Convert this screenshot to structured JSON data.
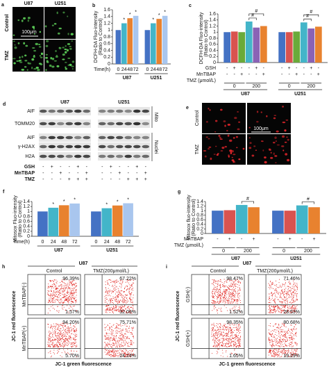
{
  "chart_data": [
    {
      "type": "bar",
      "letter": "b",
      "y_label": [
        "DCFH-DA Fluo-intensity",
        "(Ratio to Control)"
      ],
      "ylim": [
        0,
        1.6
      ],
      "yticks": [
        0,
        0.2,
        0.4,
        0.6,
        0.8,
        1,
        1.2,
        1.4,
        1.6
      ],
      "x_label": "Time(h)",
      "categories": [
        0,
        24,
        48,
        72
      ],
      "groups": [
        {
          "name": "U87",
          "values": [
            1,
            1.2,
            1.35,
            1.42
          ]
        },
        {
          "name": "U251",
          "values": [
            1,
            1.2,
            1.33,
            1.42
          ]
        }
      ],
      "colors": [
        "#4472c4",
        "#43b5c9",
        "#e8822f",
        "#a9c6ee"
      ],
      "markers": [
        null,
        "*",
        "*",
        "*"
      ]
    },
    {
      "type": "bar",
      "letter": "c",
      "y_label": [
        "DCFH-DA Fluo-intensity",
        "(Ratio to Control)"
      ],
      "ylim": [
        0,
        1.6
      ],
      "yticks": [
        0,
        0.2,
        0.4,
        0.6,
        0.8,
        1,
        1.2,
        1.4,
        1.6
      ],
      "conditions": [
        {
          "label": "GSH",
          "cells": [
            "-",
            "+",
            "-",
            "-",
            "+",
            "-"
          ]
        },
        {
          "label": "MnTBAP",
          "cells": [
            "-",
            "-",
            "+",
            "-",
            "-",
            "+"
          ]
        }
      ],
      "dose": {
        "label": "TMZ (μmol/L)",
        "values": [
          0,
          200
        ]
      },
      "groups": [
        {
          "name": "U87",
          "values": [
            1,
            1.02,
            1,
            1.35,
            1.15,
            1.2
          ]
        },
        {
          "name": "U251",
          "values": [
            1,
            1,
            1.02,
            1.32,
            1.12,
            1.18
          ]
        }
      ],
      "colors": [
        "#4472c4",
        "#d9534f",
        "#6aaa3a",
        "#43b5c9",
        "#8a62b5",
        "#e8822f"
      ],
      "brackets": [
        {
          "bars": [
            3,
            4
          ],
          "label": "#"
        },
        {
          "bars": [
            3,
            5
          ],
          "label": "#"
        }
      ]
    },
    {
      "type": "bar",
      "letter": "f",
      "y_label": [
        "Mitosox Fluo-intensity",
        "(Ratio to Control)"
      ],
      "ylim": [
        0,
        1.4
      ],
      "yticks": [
        0,
        0.2,
        0.4,
        0.6,
        0.8,
        1,
        1.2,
        1.4
      ],
      "x_label": "Time(h)",
      "categories": [
        0,
        24,
        48,
        72
      ],
      "groups": [
        {
          "name": "U87",
          "values": [
            1,
            1.15,
            1.25,
            1.32
          ]
        },
        {
          "name": "U251",
          "values": [
            1,
            1.13,
            1.24,
            1.33
          ]
        }
      ],
      "colors": [
        "#4472c4",
        "#43b5c9",
        "#e8822f",
        "#a9c6ee"
      ],
      "markers": [
        null,
        "*",
        "*",
        "*"
      ]
    },
    {
      "type": "bar",
      "letter": "g",
      "y_label": [
        "Mitosox fluo-intensity",
        "(Ratio to Control)"
      ],
      "ylim": [
        0,
        1.4
      ],
      "yticks": [
        0,
        0.2,
        0.4,
        0.6,
        0.8,
        1,
        1.2,
        1.4
      ],
      "conditions": [
        {
          "label": "MnTBAP",
          "cells": [
            "-",
            "+",
            "-",
            "+"
          ]
        }
      ],
      "dose": {
        "label": "TMZ (μmol/L)",
        "values": [
          0,
          200
        ]
      },
      "groups": [
        {
          "name": "U87",
          "values": [
            1,
            1.02,
            1.25,
            1.15
          ]
        },
        {
          "name": "U251",
          "values": [
            1,
            1,
            1.23,
            1.15
          ]
        }
      ],
      "colors": [
        "#4472c4",
        "#d9534f",
        "#43b5c9",
        "#e8822f"
      ],
      "brackets": [
        {
          "bars": [
            2,
            3
          ],
          "label": "#"
        }
      ]
    }
  ],
  "panel_a": {
    "letter": "a",
    "columns": [
      "U87",
      "U251"
    ],
    "rows": [
      "Control",
      "TMZ"
    ],
    "scale_bar": "100μm"
  },
  "panel_d": {
    "letter": "d",
    "columns": [
      "U87",
      "U251"
    ],
    "blots": [
      "AIF",
      "TOMM20",
      "AIF",
      "γ-H2AX",
      "H2A"
    ],
    "fractions": [
      "Mito",
      "Nuclei"
    ],
    "treatments": [
      {
        "label": "GSH",
        "cells": [
          "-",
          "+",
          "-",
          "-",
          "+",
          "-"
        ]
      },
      {
        "label": "MnTBAP",
        "cells": [
          "-",
          "-",
          "+",
          "-",
          "-",
          "+"
        ]
      },
      {
        "label": "TMZ",
        "cells": [
          "-",
          "-",
          "-",
          "+",
          "+",
          "+"
        ]
      }
    ]
  },
  "panel_e": {
    "letter": "e",
    "rows": [
      "Control",
      "TMZ"
    ],
    "scale_bar": "100μm"
  },
  "panel_h": {
    "letter": "h",
    "title": "U87",
    "columns": [
      "Control",
      "TMZ(200μmol/L)"
    ],
    "rows": [
      "MnTBAP(-)",
      "MnTBAP(+)"
    ],
    "y_label": "JC-1 red fluorescence",
    "x_label": "JC-1 green fluorescence",
    "plots": [
      [
        {
          "high": "96.39%",
          "low": "1.57%"
        },
        {
          "high": "67.22%",
          "low": "32.09%"
        }
      ],
      [
        {
          "high": "94.20%",
          "low": "5.70%"
        },
        {
          "high": "75.71%",
          "low": "24.24%"
        }
      ]
    ]
  },
  "panel_i": {
    "letter": "i",
    "title": "U87",
    "columns": [
      "Control",
      "TMZ(200μmol/L)"
    ],
    "rows": [
      "GSH(-)",
      "GSH(+)"
    ],
    "y_label": "JC-1 red fluorescence",
    "x_label": "JC-1 green fluorescence",
    "plots": [
      [
        {
          "high": "98.47%",
          "low": "1.52%"
        },
        {
          "high": "71.46%",
          "low": "28.53%"
        }
      ],
      [
        {
          "high": "98.35%",
          "low": "1.65%"
        },
        {
          "high": "80.68%",
          "low": "19.29%"
        }
      ]
    ]
  }
}
